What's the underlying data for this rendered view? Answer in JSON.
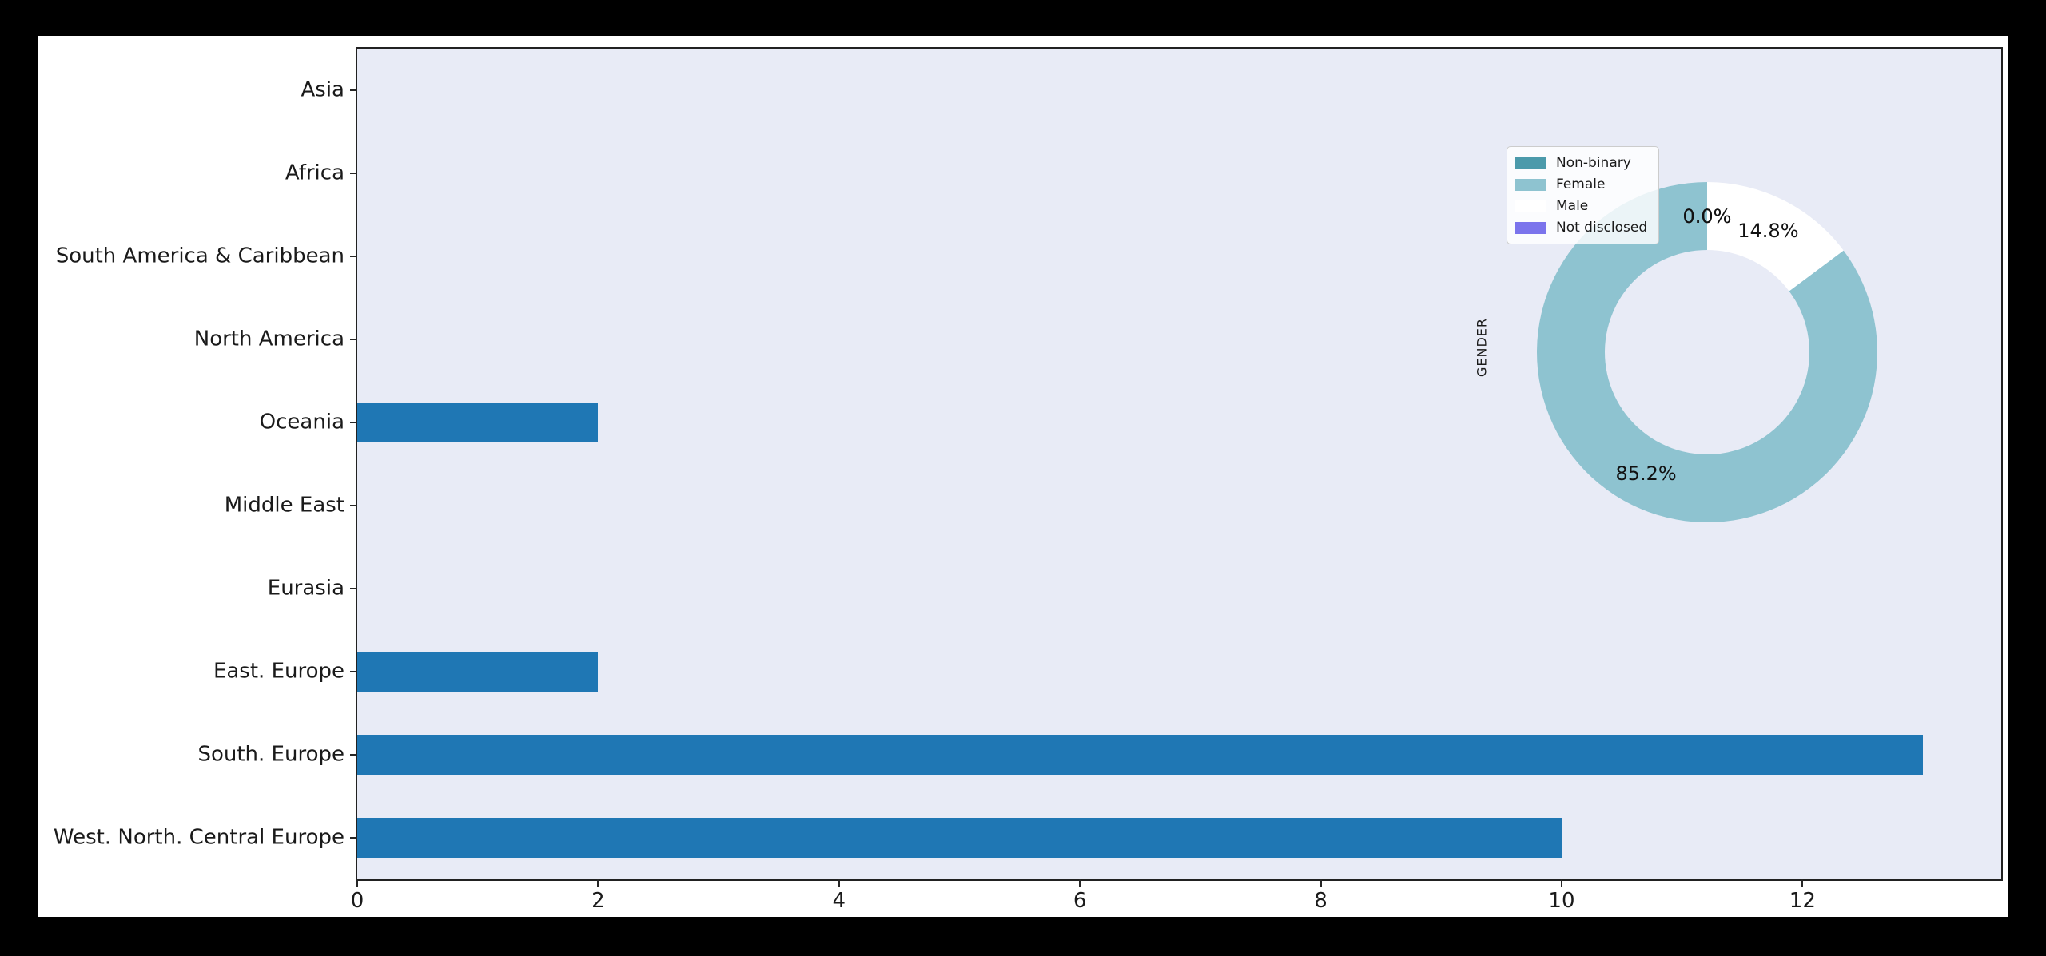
{
  "window": {
    "outer_background": "#000000",
    "canvas_background": "#ffffff",
    "plot_background": "#e8ebf6",
    "axes_border_color": "#212121",
    "text_color": "#1a1a1a"
  },
  "chart_data": [
    {
      "type": "bar",
      "orientation": "horizontal",
      "title": "",
      "xlabel": "",
      "ylabel": "",
      "categories": [
        "Asia",
        "Africa",
        "South America & Caribbean",
        "North America",
        "Oceania",
        "Middle East",
        "Eurasia",
        "East. Europe",
        "South. Europe",
        "West. North. Central Europe"
      ],
      "values": [
        0,
        0,
        0,
        0,
        2,
        0,
        0,
        2,
        13,
        10
      ],
      "xlim": [
        0,
        13.65
      ],
      "xticks": [
        0,
        2,
        4,
        6,
        8,
        10,
        12
      ],
      "xtick_labels": [
        "0",
        "2",
        "4",
        "6",
        "8",
        "10",
        "12"
      ],
      "bar_color": "#1f77b4",
      "grid": false
    },
    {
      "type": "pie",
      "subtype": "donut",
      "axis_label": "GENDER",
      "labels": [
        "Non-binary",
        "Female",
        "Male",
        "Not disclosed"
      ],
      "values_pct": [
        0.0,
        85.2,
        14.8,
        0.0
      ],
      "pct_labels": [
        "0.0%",
        "85.2%",
        "14.8%",
        "0.0%"
      ],
      "colors": [
        "#4b9aab",
        "#8ec3d0",
        "#ffffff",
        "#7b74ec"
      ],
      "start_angle": 90,
      "counterclockwise": true,
      "donut_hole_ratio": 0.6,
      "legend_position": "upper left",
      "legend_entries": [
        "Non-binary",
        "Female",
        "Male",
        "Not disclosed"
      ]
    }
  ]
}
